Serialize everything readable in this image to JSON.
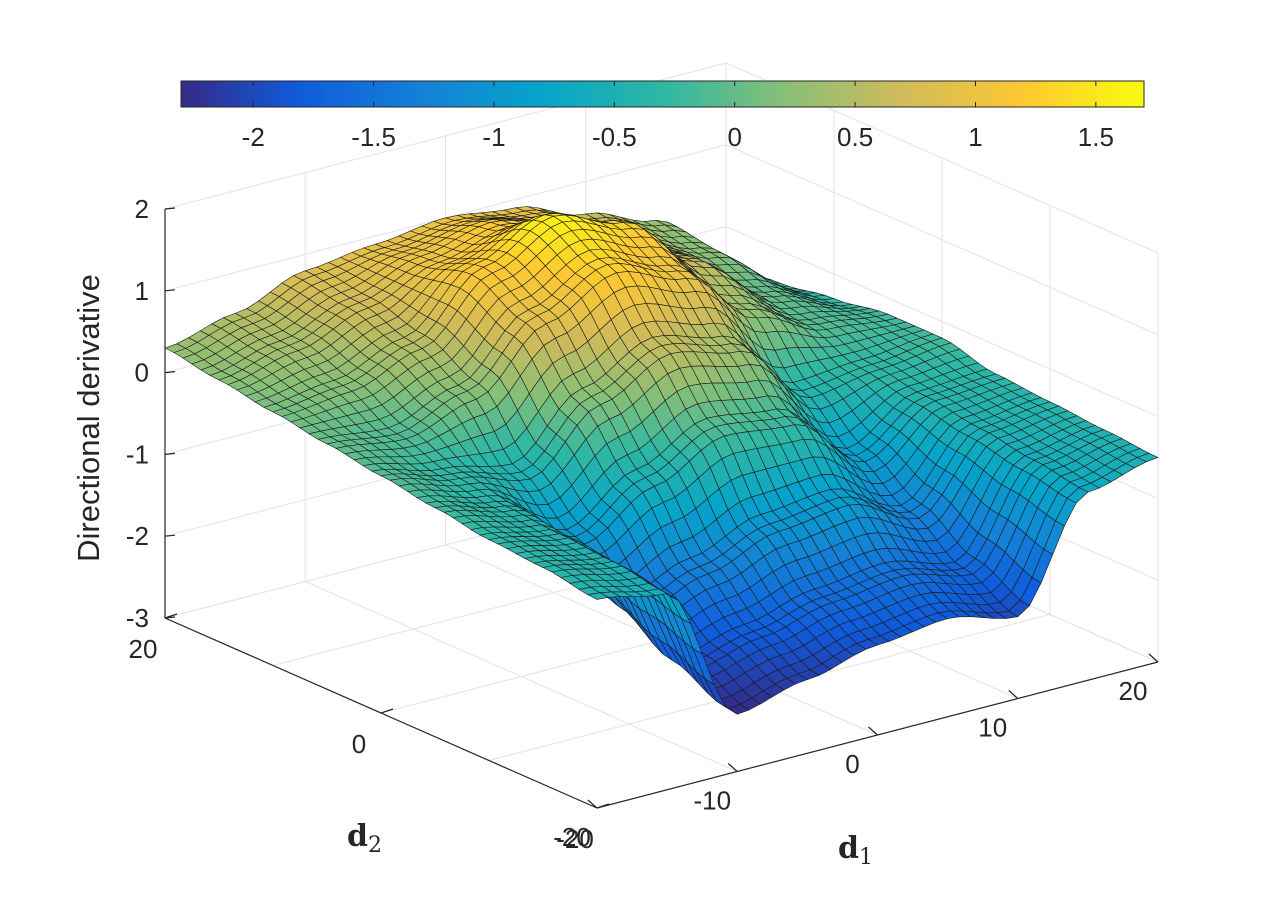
{
  "chart_data": {
    "type": "surface",
    "title": "",
    "zlabel": "Directional derivative",
    "xlabel": "d",
    "xlabel_sub": "1",
    "ylabel": "d",
    "ylabel_sub": "2",
    "xlim": [
      -20,
      20
    ],
    "ylim": [
      -20,
      20
    ],
    "zlim": [
      -3,
      2
    ],
    "x_ticks": [
      "-20",
      "-10",
      "0",
      "10",
      "20"
    ],
    "y_ticks": [
      "-20",
      "0",
      "20"
    ],
    "z_ticks": [
      "-3",
      "-2",
      "-1",
      "0",
      "1",
      "2"
    ],
    "grid": true,
    "colormap": "parula",
    "colorbar": {
      "location": "top",
      "range": [
        -2.3,
        1.7
      ],
      "ticks": [
        "-2",
        "-1.5",
        "-1",
        "-0.5",
        "0",
        "0.5",
        "1",
        "1.5"
      ]
    },
    "edge_color": "#000000",
    "surface_points": {
      "x": [
        -20,
        -15,
        -10,
        -5,
        0,
        5,
        10,
        15,
        20
      ],
      "y": [
        -20,
        -15,
        -10,
        -5,
        0,
        5,
        10,
        15,
        20
      ],
      "z": [
        [
          -0.45,
          -0.6,
          -2.3,
          -2.1,
          -1.9,
          -1.8,
          -2.0,
          -0.7,
          -0.5
        ],
        [
          -0.35,
          -0.5,
          -2.0,
          -1.8,
          -1.6,
          -1.5,
          -1.7,
          -0.6,
          -0.45
        ],
        [
          -0.3,
          -0.45,
          -1.6,
          -1.3,
          -1.0,
          -0.9,
          -1.3,
          -0.5,
          -0.4
        ],
        [
          -0.2,
          -0.4,
          -1.0,
          -0.5,
          -0.1,
          -0.2,
          -0.9,
          -0.4,
          -0.35
        ],
        [
          -0.1,
          -0.3,
          -0.5,
          0.2,
          0.6,
          0.4,
          -0.4,
          -0.3,
          -0.2
        ],
        [
          0.0,
          -0.1,
          0.2,
          0.9,
          1.3,
          1.0,
          0.3,
          -0.1,
          -0.2
        ],
        [
          0.1,
          0.2,
          0.5,
          1.2,
          1.6,
          1.3,
          0.6,
          0.0,
          -0.3
        ],
        [
          0.2,
          0.4,
          0.7,
          1.0,
          1.2,
          1.0,
          0.5,
          0.2,
          -0.4
        ],
        [
          0.3,
          0.5,
          0.8,
          0.9,
          1.0,
          0.9,
          0.6,
          0.3,
          -0.5
        ]
      ]
    }
  }
}
